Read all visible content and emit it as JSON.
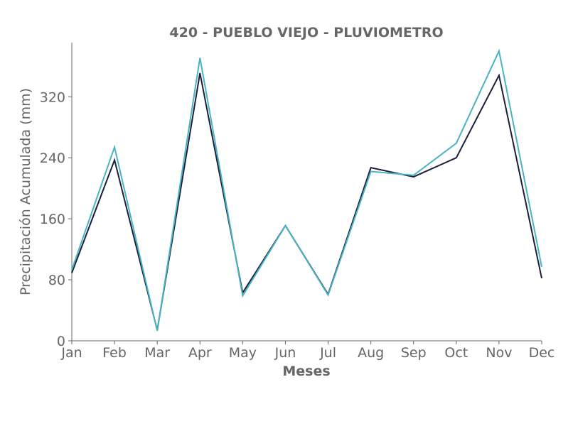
{
  "chart_data": {
    "type": "line",
    "title": "420 - PUEBLO VIEJO - PLUVIOMETRO",
    "xlabel": "Meses",
    "ylabel": "Precipitación Acumulada (mm)",
    "categories": [
      "Jan",
      "Feb",
      "Mar",
      "Apr",
      "May",
      "Jun",
      "Jul",
      "Aug",
      "Sep",
      "Oct",
      "Nov",
      "Dec"
    ],
    "ylim": [
      0,
      391
    ],
    "yticks": [
      0,
      80,
      160,
      240,
      320
    ],
    "grid": false,
    "series": [
      {
        "color": "#1b1f3b",
        "values": [
          89,
          237,
          14,
          351,
          63,
          151,
          61,
          227,
          215,
          240,
          348,
          82
        ]
      },
      {
        "color": "#4ab3c3",
        "values": [
          93,
          254,
          13,
          371,
          59,
          151,
          60,
          222,
          217,
          259,
          380,
          97
        ]
      }
    ]
  }
}
